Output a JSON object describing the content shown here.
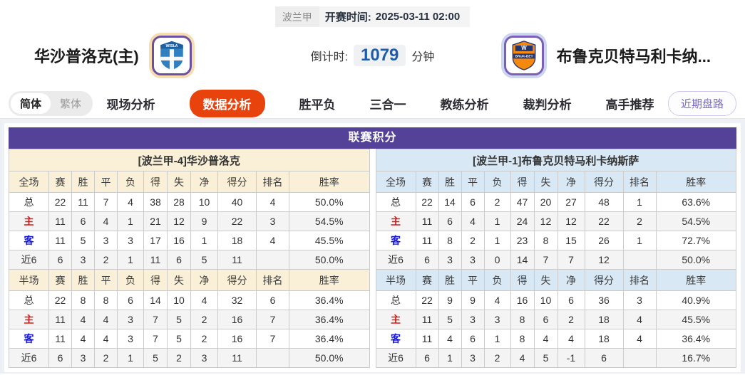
{
  "header": {
    "league_tag": "波兰甲",
    "kickoff_label": "开赛时间:",
    "kickoff_time": "2025-03-11 02:00",
    "home_team": "华沙普洛克(主)",
    "away_team": "布鲁克贝特马利卡纳...",
    "countdown_label": "倒计时:",
    "countdown_value": "1079",
    "countdown_unit": "分钟"
  },
  "nav": {
    "lang_simplified": "简体",
    "lang_traditional": "繁体",
    "tabs": [
      {
        "id": "live-analysis",
        "label": "现场分析",
        "active": false
      },
      {
        "id": "data-analysis",
        "label": "数据分析",
        "active": true
      },
      {
        "id": "win-draw-lose",
        "label": "胜平负",
        "active": false
      },
      {
        "id": "three-in-one",
        "label": "三合一",
        "active": false
      },
      {
        "id": "coach-analysis",
        "label": "教练分析",
        "active": false
      },
      {
        "id": "referee-analysis",
        "label": "裁判分析",
        "active": false
      },
      {
        "id": "expert-picks",
        "label": "高手推荐",
        "active": false
      }
    ],
    "recent_button": "近期盘路"
  },
  "icons": {
    "home_badge": "wisla-plock-crest-icon",
    "away_badge": "bruk-bet-crest-icon",
    "home_crest_text": "WISŁA",
    "away_crest_text": "BRUK-BET",
    "away_crest_letter": "W"
  },
  "colors": {
    "accent_purple": "#544299",
    "active_tab_red": "#e8430d",
    "home_row_red": "#d41a1a",
    "away_row_blue": "#1515d8",
    "left_header_cream": "#faefd7",
    "right_header_blue": "#d9e8f5",
    "countdown_blue": "#1d5cab"
  },
  "table": {
    "title": "联赛积分",
    "left": {
      "team_header": "[波兰甲-4]华沙普洛克",
      "full_columns": [
        "全场",
        "赛",
        "胜",
        "平",
        "负",
        "得",
        "失",
        "净",
        "得分",
        "排名",
        "胜率"
      ],
      "full_rows": [
        {
          "label": "总",
          "values": [
            "22",
            "11",
            "7",
            "4",
            "38",
            "28",
            "10",
            "40",
            "4",
            "50.0%"
          ]
        },
        {
          "label": "主",
          "values": [
            "11",
            "6",
            "4",
            "1",
            "21",
            "12",
            "9",
            "22",
            "3",
            "54.5%"
          ]
        },
        {
          "label": "客",
          "values": [
            "11",
            "5",
            "3",
            "3",
            "17",
            "16",
            "1",
            "18",
            "4",
            "45.5%"
          ]
        },
        {
          "label": "近6",
          "values": [
            "6",
            "3",
            "2",
            "1",
            "11",
            "6",
            "5",
            "11",
            "",
            "50.0%"
          ]
        }
      ],
      "half_columns": [
        "半场",
        "赛",
        "胜",
        "平",
        "负",
        "得",
        "失",
        "净",
        "得分",
        "排名",
        "胜率"
      ],
      "half_rows": [
        {
          "label": "总",
          "values": [
            "22",
            "8",
            "8",
            "6",
            "14",
            "10",
            "4",
            "32",
            "6",
            "36.4%"
          ]
        },
        {
          "label": "主",
          "values": [
            "11",
            "4",
            "4",
            "3",
            "7",
            "5",
            "2",
            "16",
            "7",
            "36.4%"
          ]
        },
        {
          "label": "客",
          "values": [
            "11",
            "4",
            "4",
            "3",
            "7",
            "5",
            "2",
            "16",
            "7",
            "36.4%"
          ]
        },
        {
          "label": "近6",
          "values": [
            "6",
            "3",
            "2",
            "1",
            "5",
            "2",
            "3",
            "11",
            "",
            "50.0%"
          ]
        }
      ]
    },
    "right": {
      "team_header": "[波兰甲-1]布鲁克贝特马利卡纳斯萨",
      "full_columns": [
        "全场",
        "赛",
        "胜",
        "平",
        "负",
        "得",
        "失",
        "净",
        "得分",
        "排名",
        "胜率"
      ],
      "full_rows": [
        {
          "label": "总",
          "values": [
            "22",
            "14",
            "6",
            "2",
            "47",
            "20",
            "27",
            "48",
            "1",
            "63.6%"
          ]
        },
        {
          "label": "主",
          "values": [
            "11",
            "6",
            "4",
            "1",
            "24",
            "12",
            "12",
            "22",
            "2",
            "54.5%"
          ]
        },
        {
          "label": "客",
          "values": [
            "11",
            "8",
            "2",
            "1",
            "23",
            "8",
            "15",
            "26",
            "1",
            "72.7%"
          ]
        },
        {
          "label": "近6",
          "values": [
            "6",
            "3",
            "3",
            "0",
            "14",
            "7",
            "7",
            "12",
            "",
            "50.0%"
          ]
        }
      ],
      "half_columns": [
        "半场",
        "赛",
        "胜",
        "平",
        "负",
        "得",
        "失",
        "净",
        "得分",
        "排名",
        "胜率"
      ],
      "half_rows": [
        {
          "label": "总",
          "values": [
            "22",
            "9",
            "9",
            "4",
            "16",
            "10",
            "6",
            "36",
            "3",
            "40.9%"
          ]
        },
        {
          "label": "主",
          "values": [
            "11",
            "5",
            "3",
            "3",
            "8",
            "6",
            "2",
            "18",
            "4",
            "45.5%"
          ]
        },
        {
          "label": "客",
          "values": [
            "11",
            "4",
            "6",
            "1",
            "8",
            "4",
            "4",
            "18",
            "4",
            "36.4%"
          ]
        },
        {
          "label": "近6",
          "values": [
            "6",
            "1",
            "3",
            "2",
            "4",
            "5",
            "-1",
            "6",
            "",
            "16.7%"
          ]
        }
      ]
    }
  }
}
